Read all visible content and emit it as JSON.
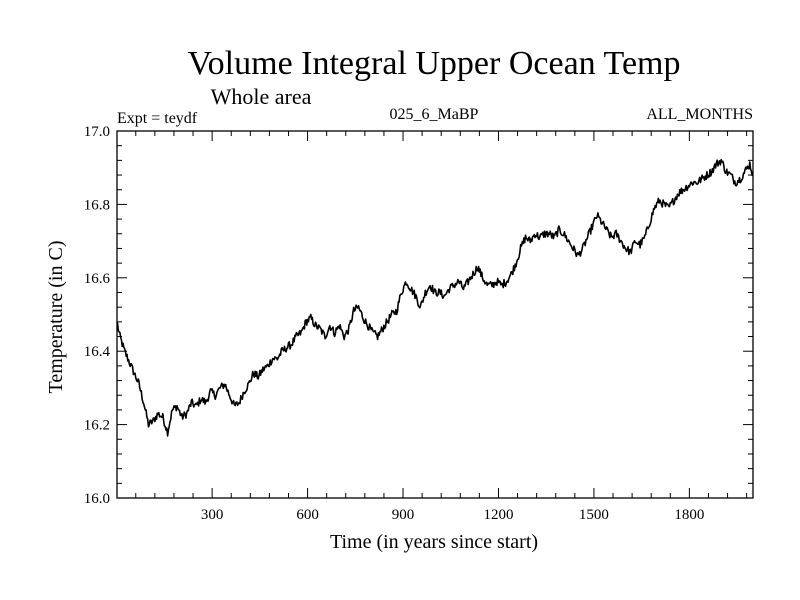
{
  "chart_data": {
    "type": "line",
    "title": "Volume Integral Upper Ocean Temp",
    "subtitle": "Whole area",
    "info_left": "Expt = teydf",
    "info_center": "025_6_MaBP",
    "info_right": "ALL_MONTHS",
    "xlabel": "Time (in years since start)",
    "ylabel": "Temperature (in C)",
    "xlim": [
      1,
      2000
    ],
    "ylim": [
      16.0,
      17.0
    ],
    "x_ticks": [
      300,
      600,
      900,
      1200,
      1500,
      1800
    ],
    "x_tick_labels": [
      "300",
      "600",
      "900",
      "1200",
      "1500",
      "1800"
    ],
    "y_ticks": [
      16.0,
      16.2,
      16.4,
      16.6,
      16.8,
      17.0
    ],
    "y_tick_labels": [
      "16.0",
      "16.2",
      "16.4",
      "16.6",
      "16.8",
      "17.0"
    ],
    "line_color": "#000000",
    "series": [
      {
        "name": "Volume integral upper ocean temperature",
        "x": [
          1,
          10,
          25,
          40,
          55,
          70,
          85,
          100,
          115,
          130,
          145,
          160,
          175,
          190,
          205,
          220,
          235,
          250,
          265,
          280,
          295,
          310,
          325,
          340,
          355,
          370,
          385,
          400,
          415,
          430,
          445,
          460,
          475,
          490,
          505,
          520,
          535,
          550,
          565,
          580,
          595,
          610,
          625,
          640,
          655,
          670,
          685,
          700,
          715,
          730,
          745,
          760,
          775,
          790,
          805,
          820,
          835,
          850,
          865,
          880,
          895,
          910,
          925,
          940,
          955,
          970,
          985,
          1000,
          1015,
          1030,
          1045,
          1060,
          1075,
          1090,
          1105,
          1120,
          1135,
          1150,
          1165,
          1180,
          1195,
          1210,
          1225,
          1240,
          1255,
          1270,
          1285,
          1300,
          1315,
          1330,
          1345,
          1360,
          1375,
          1390,
          1405,
          1420,
          1435,
          1450,
          1465,
          1480,
          1495,
          1510,
          1525,
          1540,
          1555,
          1570,
          1585,
          1600,
          1615,
          1630,
          1645,
          1660,
          1675,
          1690,
          1705,
          1720,
          1735,
          1750,
          1765,
          1780,
          1795,
          1810,
          1825,
          1840,
          1855,
          1870,
          1885,
          1900,
          1915,
          1930,
          1945,
          1960,
          1975,
          1990,
          2000
        ],
        "values": [
          16.48,
          16.44,
          16.4,
          16.37,
          16.34,
          16.31,
          16.26,
          16.2,
          16.21,
          16.23,
          16.22,
          16.18,
          16.24,
          16.25,
          16.22,
          16.23,
          16.26,
          16.25,
          16.27,
          16.26,
          16.29,
          16.28,
          16.3,
          16.31,
          16.28,
          16.25,
          16.26,
          16.29,
          16.31,
          16.34,
          16.33,
          16.35,
          16.36,
          16.38,
          16.38,
          16.4,
          16.41,
          16.42,
          16.44,
          16.45,
          16.48,
          16.49,
          16.47,
          16.46,
          16.44,
          16.47,
          16.45,
          16.47,
          16.44,
          16.46,
          16.51,
          16.52,
          16.49,
          16.47,
          16.45,
          16.44,
          16.46,
          16.48,
          16.5,
          16.51,
          16.56,
          16.59,
          16.57,
          16.55,
          16.52,
          16.56,
          16.58,
          16.56,
          16.56,
          16.55,
          16.57,
          16.58,
          16.59,
          16.57,
          16.59,
          16.61,
          16.63,
          16.6,
          16.58,
          16.58,
          16.59,
          16.58,
          16.59,
          16.61,
          16.64,
          16.68,
          16.71,
          16.7,
          16.72,
          16.71,
          16.72,
          16.72,
          16.71,
          16.73,
          16.72,
          16.7,
          16.68,
          16.66,
          16.68,
          16.71,
          16.74,
          16.77,
          16.75,
          16.73,
          16.71,
          16.72,
          16.7,
          16.68,
          16.67,
          16.7,
          16.69,
          16.71,
          16.75,
          16.79,
          16.81,
          16.8,
          16.79,
          16.81,
          16.83,
          16.84,
          16.85,
          16.86,
          16.86,
          16.87,
          16.88,
          16.89,
          16.91,
          16.92,
          16.89,
          16.88,
          16.86,
          16.87,
          16.89,
          16.91,
          16.88
        ]
      }
    ]
  }
}
